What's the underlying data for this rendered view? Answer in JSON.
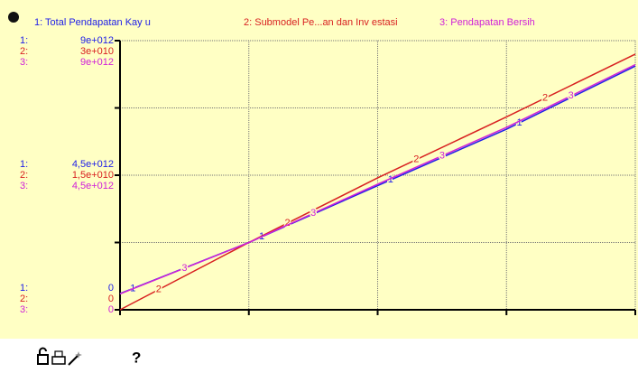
{
  "chart_data": {
    "type": "line",
    "x": [
      0,
      1,
      2,
      3,
      4
    ],
    "xlim": [
      0,
      4
    ],
    "xticks": [
      0,
      1,
      2,
      3,
      4
    ],
    "grid": true,
    "series": [
      {
        "name": "1: Total Pendapatan Kay u",
        "prefix": "1:",
        "marker": "1",
        "color": "#2020e8",
        "values": [
          540000000000,
          2250000000000,
          4150000000000,
          6040000000000,
          8150000000000
        ],
        "ylim": [
          0,
          9000000000000
        ],
        "yticks": [
          0,
          {
            "value": 4500000000000,
            "label": "4,5e+012"
          },
          {
            "value": 9000000000000,
            "label": "9e+012"
          }
        ],
        "ygrid": [
          0,
          2250000000000,
          4500000000000,
          6750000000000,
          9000000000000
        ]
      },
      {
        "name": "2: Submodel Pe...an dan Inv estasi",
        "prefix": "2:",
        "marker": "2",
        "color": "#d82020",
        "values": [
          0,
          7500000000,
          14700000000,
          21500000000,
          28500000000
        ],
        "ylim": [
          0,
          30000000000
        ],
        "yticks": [
          0,
          {
            "value": 15000000000,
            "label": "1,5e+010"
          },
          {
            "value": 30000000000,
            "label": "3e+010"
          }
        ]
      },
      {
        "name": "3: Pendapatan Bersih",
        "prefix": "3:",
        "marker": "3",
        "color": "#d020d8",
        "values": [
          530000000000,
          2250000000000,
          4200000000000,
          6100000000000,
          8200000000000
        ],
        "ylim": [
          0,
          9000000000000
        ],
        "yticks": [
          0,
          {
            "value": 4500000000000,
            "label": "4,5e+012"
          },
          {
            "value": 9000000000000,
            "label": "9e+012"
          }
        ]
      }
    ]
  },
  "toolbar": {
    "help": "?"
  }
}
